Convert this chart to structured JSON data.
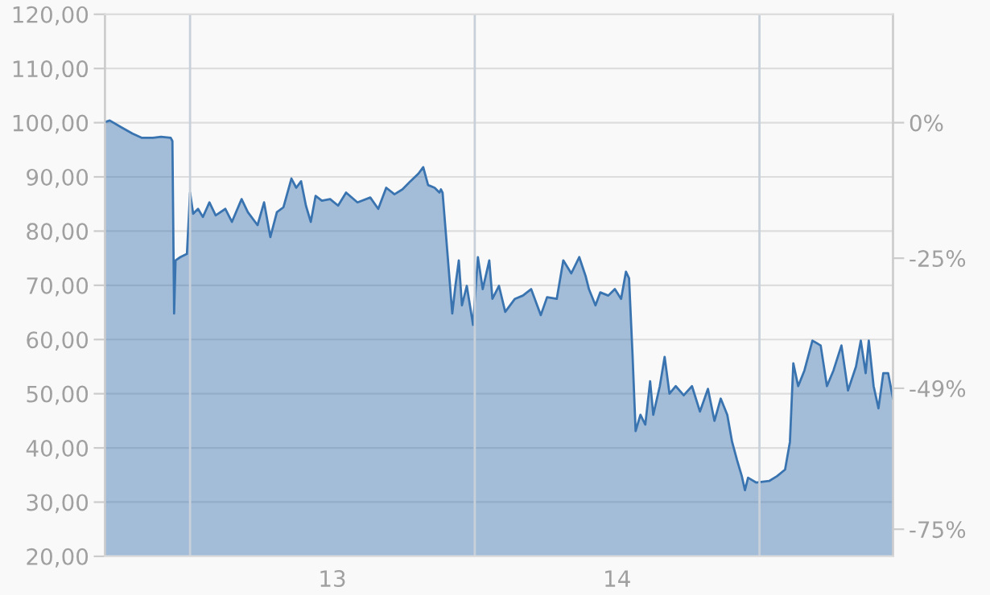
{
  "chart_data": {
    "type": "area",
    "x": [
      12.701,
      12.718,
      12.757,
      12.797,
      12.831,
      12.87,
      12.898,
      12.932,
      12.938,
      12.944,
      12.949,
      12.966,
      12.989,
      13.0,
      13.011,
      13.028,
      13.045,
      13.068,
      13.09,
      13.124,
      13.147,
      13.181,
      13.203,
      13.237,
      13.26,
      13.282,
      13.305,
      13.328,
      13.356,
      13.373,
      13.39,
      13.407,
      13.424,
      13.441,
      13.463,
      13.492,
      13.52,
      13.548,
      13.588,
      13.633,
      13.661,
      13.689,
      13.718,
      13.746,
      13.774,
      13.802,
      13.819,
      13.836,
      13.859,
      13.876,
      13.881,
      13.887,
      13.921,
      13.932,
      13.944,
      13.955,
      13.972,
      13.994,
      14.011,
      14.028,
      14.051,
      14.062,
      14.085,
      14.107,
      14.141,
      14.169,
      14.198,
      14.232,
      14.254,
      14.288,
      14.311,
      14.339,
      14.367,
      14.39,
      14.401,
      14.424,
      14.441,
      14.469,
      14.492,
      14.514,
      14.531,
      14.542,
      14.554,
      14.565,
      14.582,
      14.599,
      14.616,
      14.627,
      14.65,
      14.667,
      14.684,
      14.706,
      14.734,
      14.763,
      14.791,
      14.819,
      14.842,
      14.864,
      14.887,
      14.904,
      14.921,
      14.938,
      14.949,
      14.96,
      14.989,
      15.034,
      15.062,
      15.09,
      15.107,
      15.119,
      15.136,
      15.158,
      15.186,
      15.215,
      15.237,
      15.26,
      15.288,
      15.311,
      15.339,
      15.356,
      15.373,
      15.384,
      15.401,
      15.418,
      15.435,
      15.452,
      15.469
    ],
    "series": [
      {
        "color": "#3a74b0",
        "values": [
          100.1,
          100.4,
          99.2,
          98.0,
          97.2,
          97.2,
          97.4,
          97.2,
          96.6,
          64.8,
          74.6,
          75.2,
          75.8,
          87.1,
          83.2,
          84.1,
          82.6,
          85.3,
          82.9,
          84.1,
          81.7,
          85.9,
          83.5,
          81.1,
          85.3,
          78.9,
          83.5,
          84.4,
          89.7,
          88.0,
          89.2,
          84.7,
          81.7,
          86.5,
          85.6,
          85.9,
          84.7,
          87.1,
          85.3,
          86.2,
          84.1,
          88.0,
          86.8,
          87.7,
          89.2,
          90.6,
          91.8,
          88.5,
          88.0,
          87.1,
          87.7,
          87.1,
          64.8,
          69.9,
          74.6,
          66.3,
          69.9,
          62.7,
          75.2,
          69.3,
          74.6,
          67.5,
          69.9,
          65.1,
          67.5,
          68.1,
          69.3,
          64.5,
          67.8,
          67.5,
          74.6,
          72.2,
          75.2,
          71.6,
          69.3,
          66.3,
          68.7,
          68.1,
          69.3,
          67.5,
          72.5,
          71.3,
          57.4,
          43.1,
          46.1,
          44.3,
          52.3,
          46.1,
          51.4,
          56.8,
          50.0,
          51.4,
          49.7,
          51.4,
          46.7,
          50.9,
          45.0,
          49.1,
          46.1,
          41.1,
          37.8,
          34.8,
          32.2,
          34.5,
          33.6,
          33.9,
          34.8,
          36.0,
          41.1,
          55.6,
          51.4,
          54.3,
          59.8,
          58.9,
          51.4,
          54.3,
          58.9,
          50.6,
          55.0,
          59.8,
          53.8,
          59.8,
          51.4,
          47.3,
          53.8,
          53.8,
          49.1
        ]
      }
    ],
    "xlim": [
      12.701,
      15.469
    ],
    "xticks": [
      {
        "value": 13.5,
        "label": "13"
      },
      {
        "value": 14.5,
        "label": "14"
      }
    ],
    "ylim": [
      20,
      120
    ],
    "yticks": [
      {
        "value": 20,
        "label": "20,00"
      },
      {
        "value": 30,
        "label": "30,00"
      },
      {
        "value": 40,
        "label": "40,00"
      },
      {
        "value": 50,
        "label": "50,00"
      },
      {
        "value": 60,
        "label": "60,00"
      },
      {
        "value": 70,
        "label": "70,00"
      },
      {
        "value": 80,
        "label": "80,00"
      },
      {
        "value": 90,
        "label": "90,00"
      },
      {
        "value": 100,
        "label": "100,00"
      },
      {
        "value": 110,
        "label": "110,00"
      },
      {
        "value": 120,
        "label": "120,00"
      }
    ],
    "y2lim": [
      -80,
      20
    ],
    "y2ticks": [
      {
        "value": 0,
        "label": "0%"
      },
      {
        "value": -25,
        "label": "-25%"
      },
      {
        "value": -49,
        "label": "-49%"
      },
      {
        "value": -75,
        "label": "-75%"
      }
    ],
    "ref_lines": [
      {
        "axis": "x",
        "value": 13,
        "color": "#c8d0da"
      },
      {
        "axis": "x",
        "value": 14,
        "color": "#c8d0da"
      },
      {
        "axis": "x",
        "value": 15,
        "color": "#c8d0da"
      }
    ],
    "grid": "y"
  }
}
